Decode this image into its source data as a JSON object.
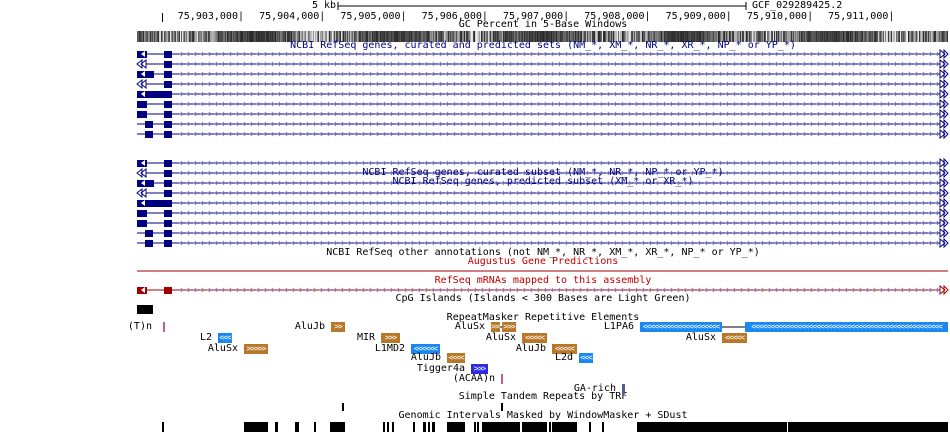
{
  "scale": {
    "label": "5 kb",
    "assembly": "GCF_029289425.2"
  },
  "ruler": {
    "ticks": [
      "75,903,000|",
      "75,904,000|",
      "75,905,000|",
      "75,906,000|",
      "75,907,000|",
      "75,908,000|",
      "75,909,000|",
      "75,910,000|",
      "75,911,000|"
    ]
  },
  "tracks": {
    "gc": "GC Percent in 5-Base Windows",
    "refseq_all": "NCBI RefSeq genes, curated and predicted sets (NM_*, XM_*, NR_*, XR_*, NP_* or YP_*)",
    "refseq_curated": "NCBI RefSeq genes, curated subset (NM_*, NR_*, NP_* or YP_*)",
    "refseq_predicted": "NCBI RefSeq genes, predicted subset (XM_* or XR_*)",
    "refseq_other": "NCBI RefSeq other annotations (not NM_*, NR_*, XM_*, XR_*, NP_* or YP_*)",
    "augustus": "Augustus Gene Predictions",
    "mrna": "RefSeq mRNAs mapped to this assembly",
    "cpg": "CpG Islands (Islands < 300 Bases are Light Green)",
    "rmsk": "RepeatMasker Repetitive Elements",
    "trf": "Simple Tandem Repeats by TRF",
    "wm": "Genomic Intervals Masked by WindowMasker + SDust"
  },
  "colors": {
    "refseq": "#000080",
    "augustus": "#a00000",
    "sine": "#b8782a",
    "line": "#1a88f0",
    "dna": "#2c2ce0",
    "simple": "#c06090",
    "low_complexity": "#505a9a"
  },
  "repeats": [
    {
      "name": "(T)n",
      "cls": "simple",
      "strand": ""
    },
    {
      "name": "AluJb",
      "cls": "sine",
      "strand": ">>"
    },
    {
      "name": "AluSx",
      "cls": "sine",
      "strand": ">>>"
    },
    {
      "name": "L1PA6",
      "cls": "line",
      "strand": "<"
    },
    {
      "name": "L2",
      "cls": "line",
      "strand": "<<<"
    },
    {
      "name": "MIR",
      "cls": "sine",
      "strand": ">>>"
    },
    {
      "name": "AluSx",
      "cls": "sine",
      "strand": "<<<<<"
    },
    {
      "name": "AluSx",
      "cls": "sine",
      "strand": "<<<<<"
    },
    {
      "name": "AluSx",
      "cls": "sine",
      "strand": ">>>>>"
    },
    {
      "name": "L1MD2",
      "cls": "line",
      "strand": "<<<<<<"
    },
    {
      "name": "AluJb",
      "cls": "sine",
      "strand": "<<<<<"
    },
    {
      "name": "AluJb",
      "cls": "sine",
      "strand": "<<<<"
    },
    {
      "name": "L2d",
      "cls": "line",
      "strand": "<<<"
    },
    {
      "name": "Tigger4a",
      "cls": "dna",
      "strand": ">>>"
    },
    {
      "name": "(ACAA)n",
      "cls": "simple",
      "strand": ""
    },
    {
      "name": "GA-rich",
      "cls": "low_complexity",
      "strand": ""
    }
  ]
}
